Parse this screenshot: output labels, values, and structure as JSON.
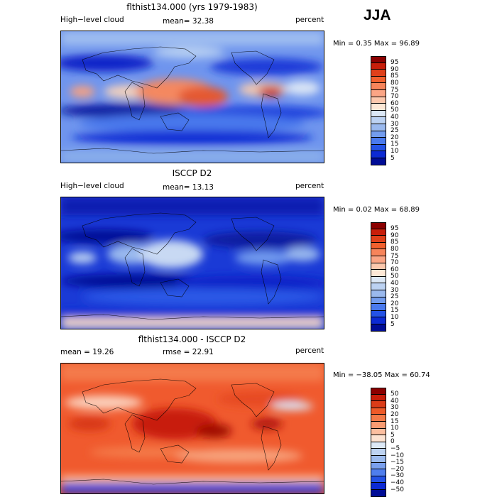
{
  "season": "JJA",
  "panels": [
    {
      "title": "flthist134.000 (yrs 1979-1983)",
      "left_label": "High−level cloud",
      "center_label": "mean=  32.38",
      "right_label": "percent",
      "stats": "Min =   0.35 Max =  96.89",
      "colorbar": {
        "labels": [
          "95",
          "90",
          "85",
          "80",
          "75",
          "70",
          "60",
          "50",
          "40",
          "30",
          "25",
          "20",
          "15",
          "10",
          "5"
        ],
        "colors": [
          "#8b0000",
          "#c81e0a",
          "#e0401a",
          "#f2602e",
          "#f7845a",
          "#fba585",
          "#fcc8ad",
          "#fde8d6",
          "#dce8f6",
          "#bcd2f2",
          "#9ab9ee",
          "#739cee",
          "#4a7aee",
          "#2452e6",
          "#0c2ad4",
          "#000c96"
        ]
      }
    },
    {
      "title": "ISCCP D2",
      "left_label": "High−level cloud",
      "center_label": "mean=  13.13",
      "right_label": "percent",
      "stats": "Min =   0.02 Max =  68.89",
      "colorbar": {
        "labels": [
          "95",
          "90",
          "85",
          "80",
          "75",
          "70",
          "60",
          "50",
          "40",
          "30",
          "25",
          "20",
          "15",
          "10",
          "5"
        ],
        "colors": [
          "#8b0000",
          "#c81e0a",
          "#e0401a",
          "#f2602e",
          "#f7845a",
          "#fba585",
          "#fcc8ad",
          "#fde8d6",
          "#dce8f6",
          "#bcd2f2",
          "#9ab9ee",
          "#739cee",
          "#4a7aee",
          "#2452e6",
          "#0c2ad4",
          "#000c96"
        ]
      }
    },
    {
      "title": "flthist134.000 - ISCCP D2",
      "left_label": "mean =   19.26",
      "center_label": "rmse =   22.91",
      "right_label": "percent",
      "stats": "Min = −38.05 Max =  60.74",
      "colorbar": {
        "labels": [
          "50",
          "40",
          "30",
          "20",
          "15",
          "10",
          "5",
          "0",
          "−5",
          "−10",
          "−15",
          "−20",
          "−30",
          "−40",
          "−50"
        ],
        "colors": [
          "#8b0000",
          "#c81e0a",
          "#dc3c18",
          "#ee5a28",
          "#f47a48",
          "#f99c72",
          "#fcbfa0",
          "#fde3d2",
          "#dde9f7",
          "#bdd3f2",
          "#9cbbee",
          "#7aa0ee",
          "#4f7eee",
          "#2452e6",
          "#0c2ad4",
          "#000c96"
        ]
      }
    }
  ]
}
